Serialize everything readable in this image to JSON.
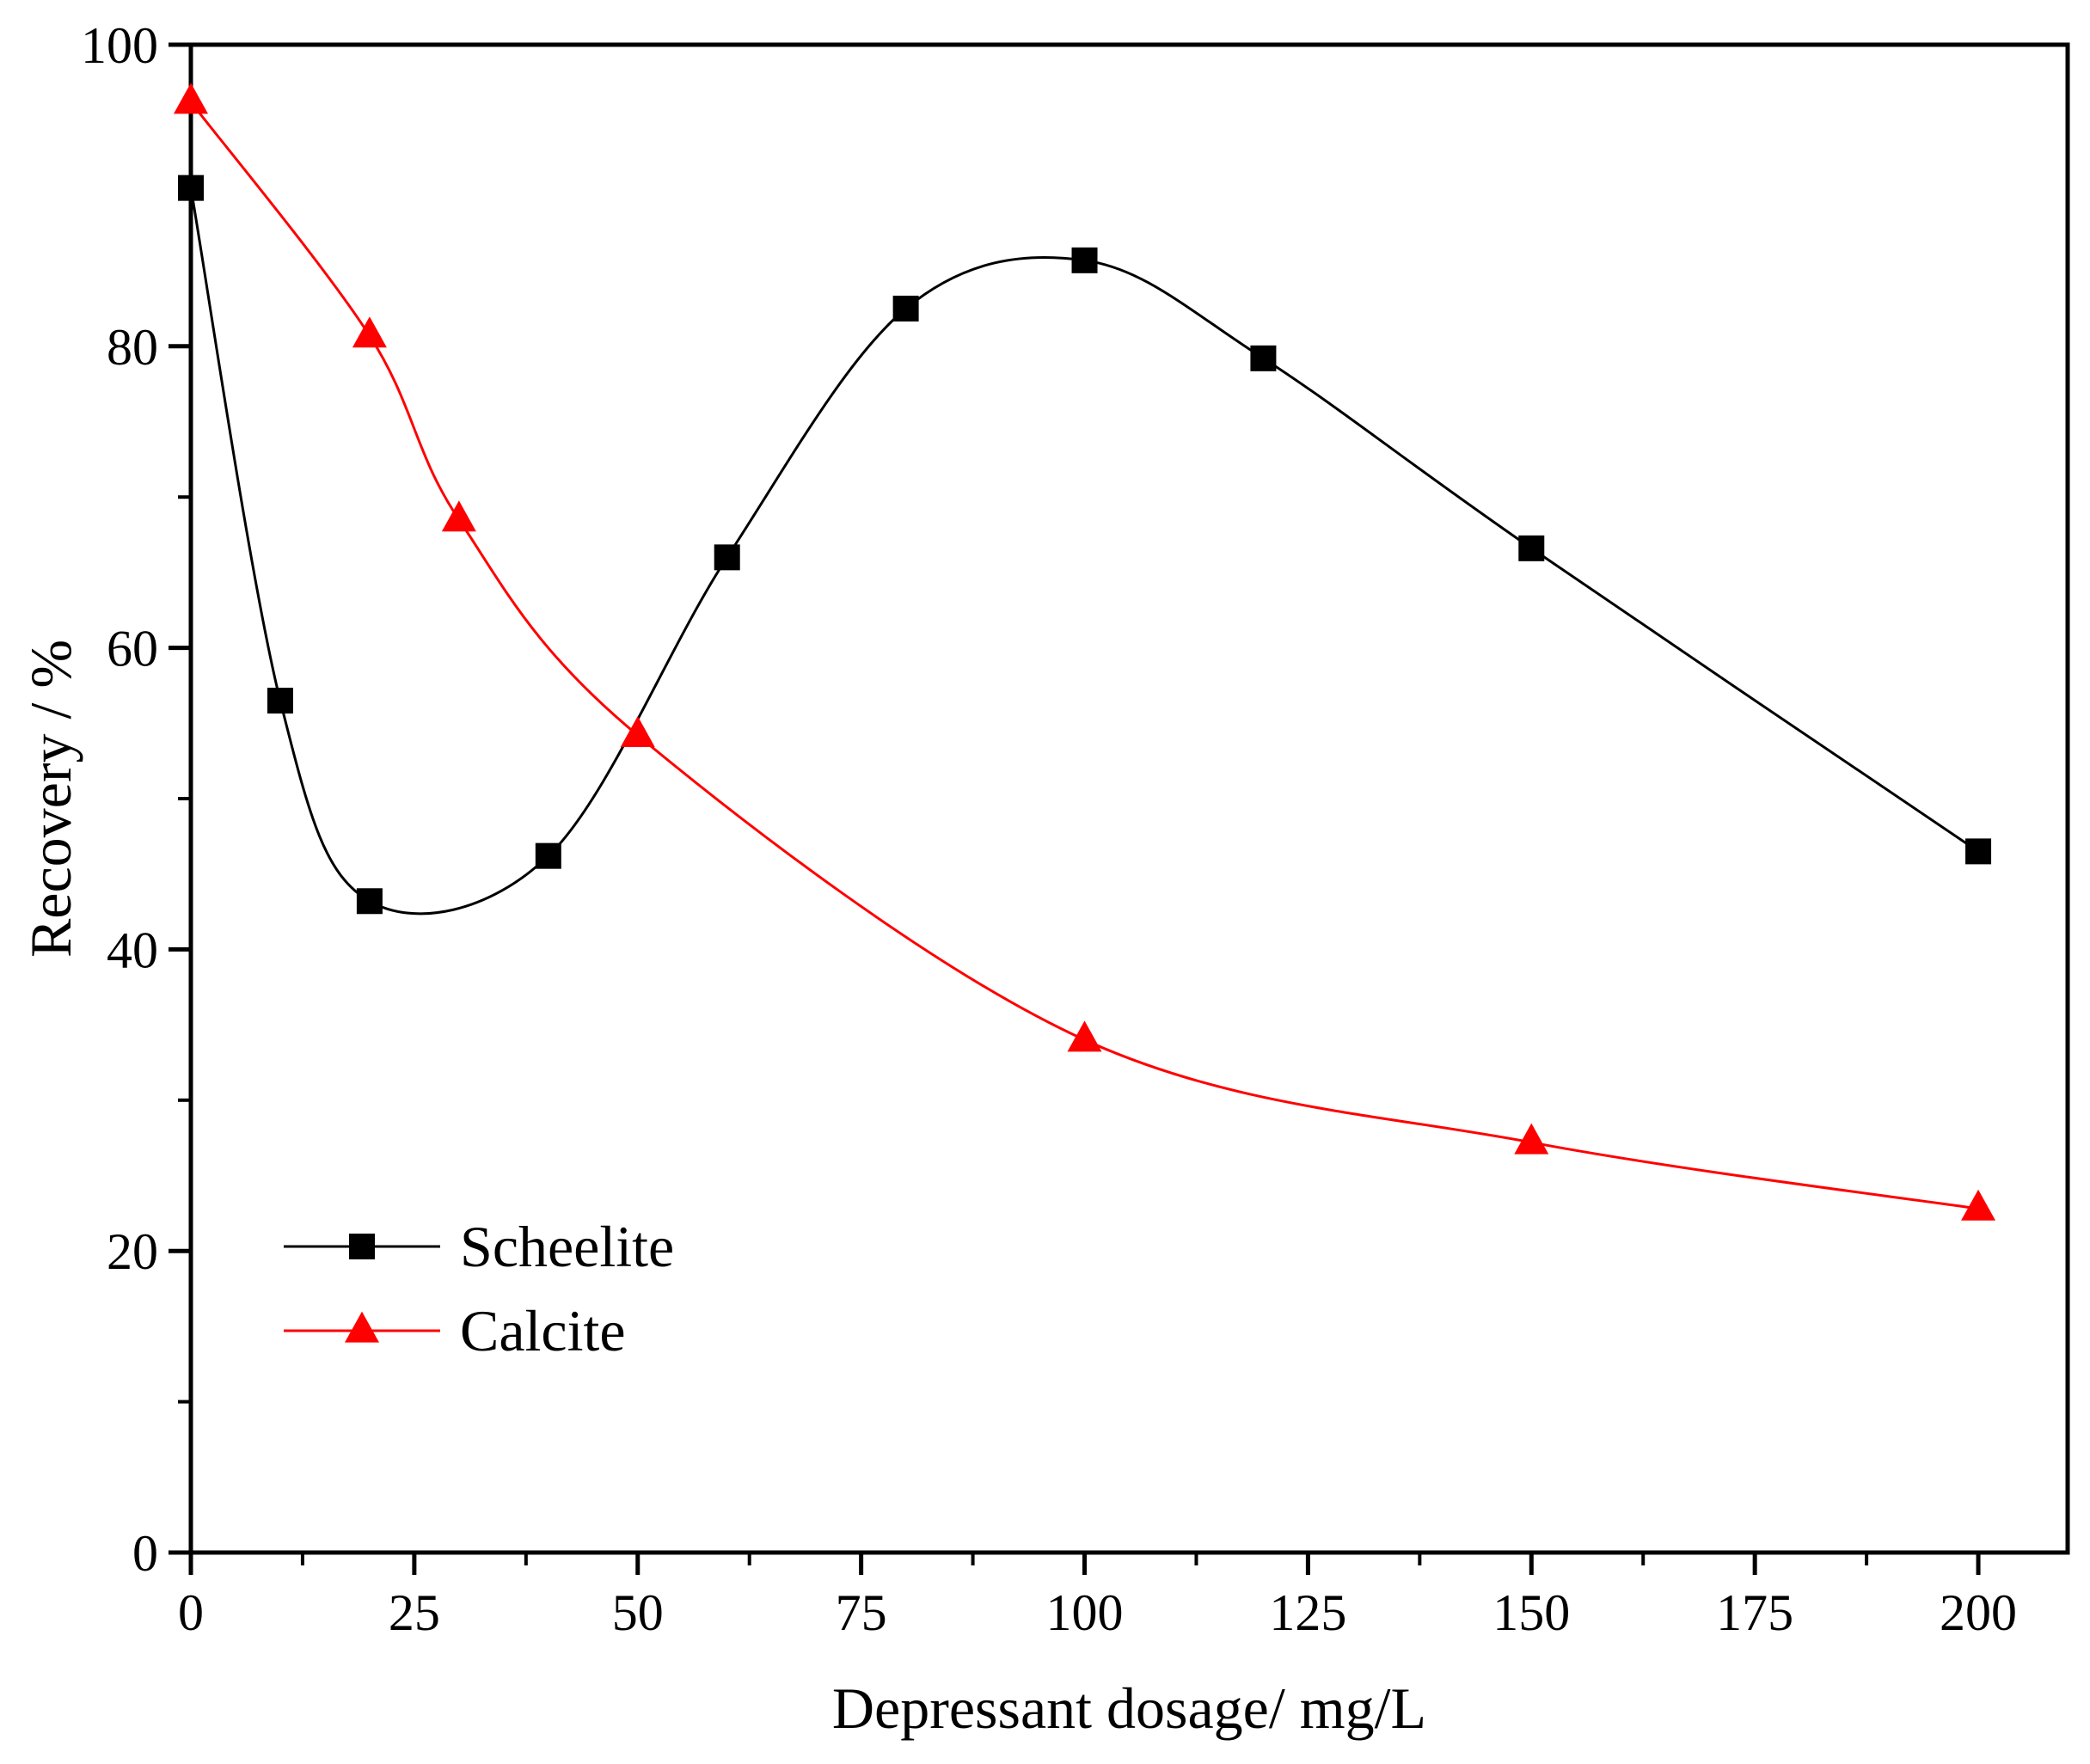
{
  "chart_data": {
    "type": "scatter",
    "title": "",
    "xlabel": "Depressant dosage/ mg/L",
    "ylabel": "Recovery / %",
    "xlim": [
      0,
      210
    ],
    "ylim": [
      0,
      100
    ],
    "xticks": [
      0,
      25,
      50,
      75,
      100,
      125,
      150,
      175,
      200
    ],
    "yticks": [
      0,
      20,
      40,
      60,
      80,
      100
    ],
    "x_minor_step": 12.5,
    "y_minor_step": 10,
    "grid": false,
    "legend_position": "lower-left",
    "series": [
      {
        "name": "Scheelite",
        "color": "#000000",
        "marker": "square",
        "x": [
          0,
          10,
          20,
          40,
          60,
          80,
          100,
          120,
          150,
          200
        ],
        "y": [
          90.5,
          56.5,
          43.2,
          46.2,
          66.0,
          82.5,
          85.7,
          79.2,
          66.6,
          46.5
        ]
      },
      {
        "name": "Calcite",
        "color": "#ff0000",
        "marker": "triangle",
        "x": [
          0,
          20,
          30,
          50,
          100,
          150,
          200
        ],
        "y": [
          96.2,
          80.7,
          68.5,
          54.2,
          34.0,
          27.2,
          22.8
        ]
      }
    ]
  }
}
